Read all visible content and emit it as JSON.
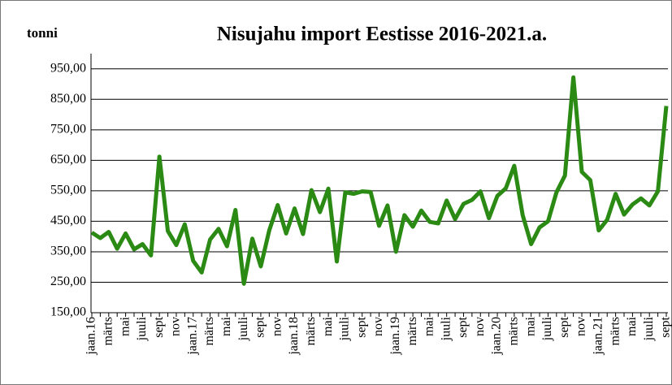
{
  "chart_data": {
    "type": "line",
    "title": "Nisujahu import Eestisse 2016-2021.a.",
    "y_label": "tonni",
    "categories": [
      "jaan.16",
      null,
      "märts",
      null,
      "mai",
      null,
      "juuli",
      null,
      "sept",
      null,
      "nov",
      null,
      "jaan.17",
      null,
      "märts",
      null,
      "mai",
      null,
      "juuli",
      null,
      "sept",
      null,
      "nov",
      null,
      "jaan.18",
      null,
      "märts",
      null,
      "mai",
      null,
      "juuli",
      null,
      "sept",
      null,
      "nov",
      null,
      "jaan.19",
      null,
      "märts",
      null,
      "mai",
      null,
      "juuli",
      null,
      "sept",
      null,
      "nov",
      null,
      "jaan.20",
      null,
      "märts",
      null,
      "mai",
      null,
      "juuli",
      null,
      "sept",
      null,
      "nov",
      null,
      "jaan.21",
      null,
      "märts",
      null,
      "mai",
      null,
      "juuli",
      null,
      "sept"
    ],
    "series": [
      {
        "name": "Nisujahu import",
        "color": "#2a8a14",
        "values": [
          413,
          395,
          415,
          360,
          410,
          358,
          375,
          338,
          662,
          418,
          372,
          440,
          320,
          282,
          390,
          425,
          368,
          487,
          245,
          393,
          302,
          420,
          503,
          410,
          492,
          408,
          552,
          480,
          557,
          318,
          545,
          540,
          548,
          546,
          435,
          502,
          350,
          470,
          432,
          485,
          448,
          443,
          518,
          457,
          507,
          520,
          548,
          460,
          533,
          558,
          632,
          470,
          375,
          430,
          450,
          545,
          600,
          922,
          612,
          585,
          420,
          455,
          540,
          472,
          505,
          525,
          502,
          548,
          828
        ]
      }
    ],
    "ylim": [
      150,
      1000
    ],
    "yticks": [
      {
        "value": 150,
        "label": "150,00"
      },
      {
        "value": 250,
        "label": "250,00"
      },
      {
        "value": 350,
        "label": "350,00"
      },
      {
        "value": 450,
        "label": "450,00"
      },
      {
        "value": 550,
        "label": "550,00"
      },
      {
        "value": 650,
        "label": "650,00"
      },
      {
        "value": 750,
        "label": "750,00"
      },
      {
        "value": 850,
        "label": "850,00"
      },
      {
        "value": 950,
        "label": "950,00"
      }
    ],
    "grid": true
  }
}
